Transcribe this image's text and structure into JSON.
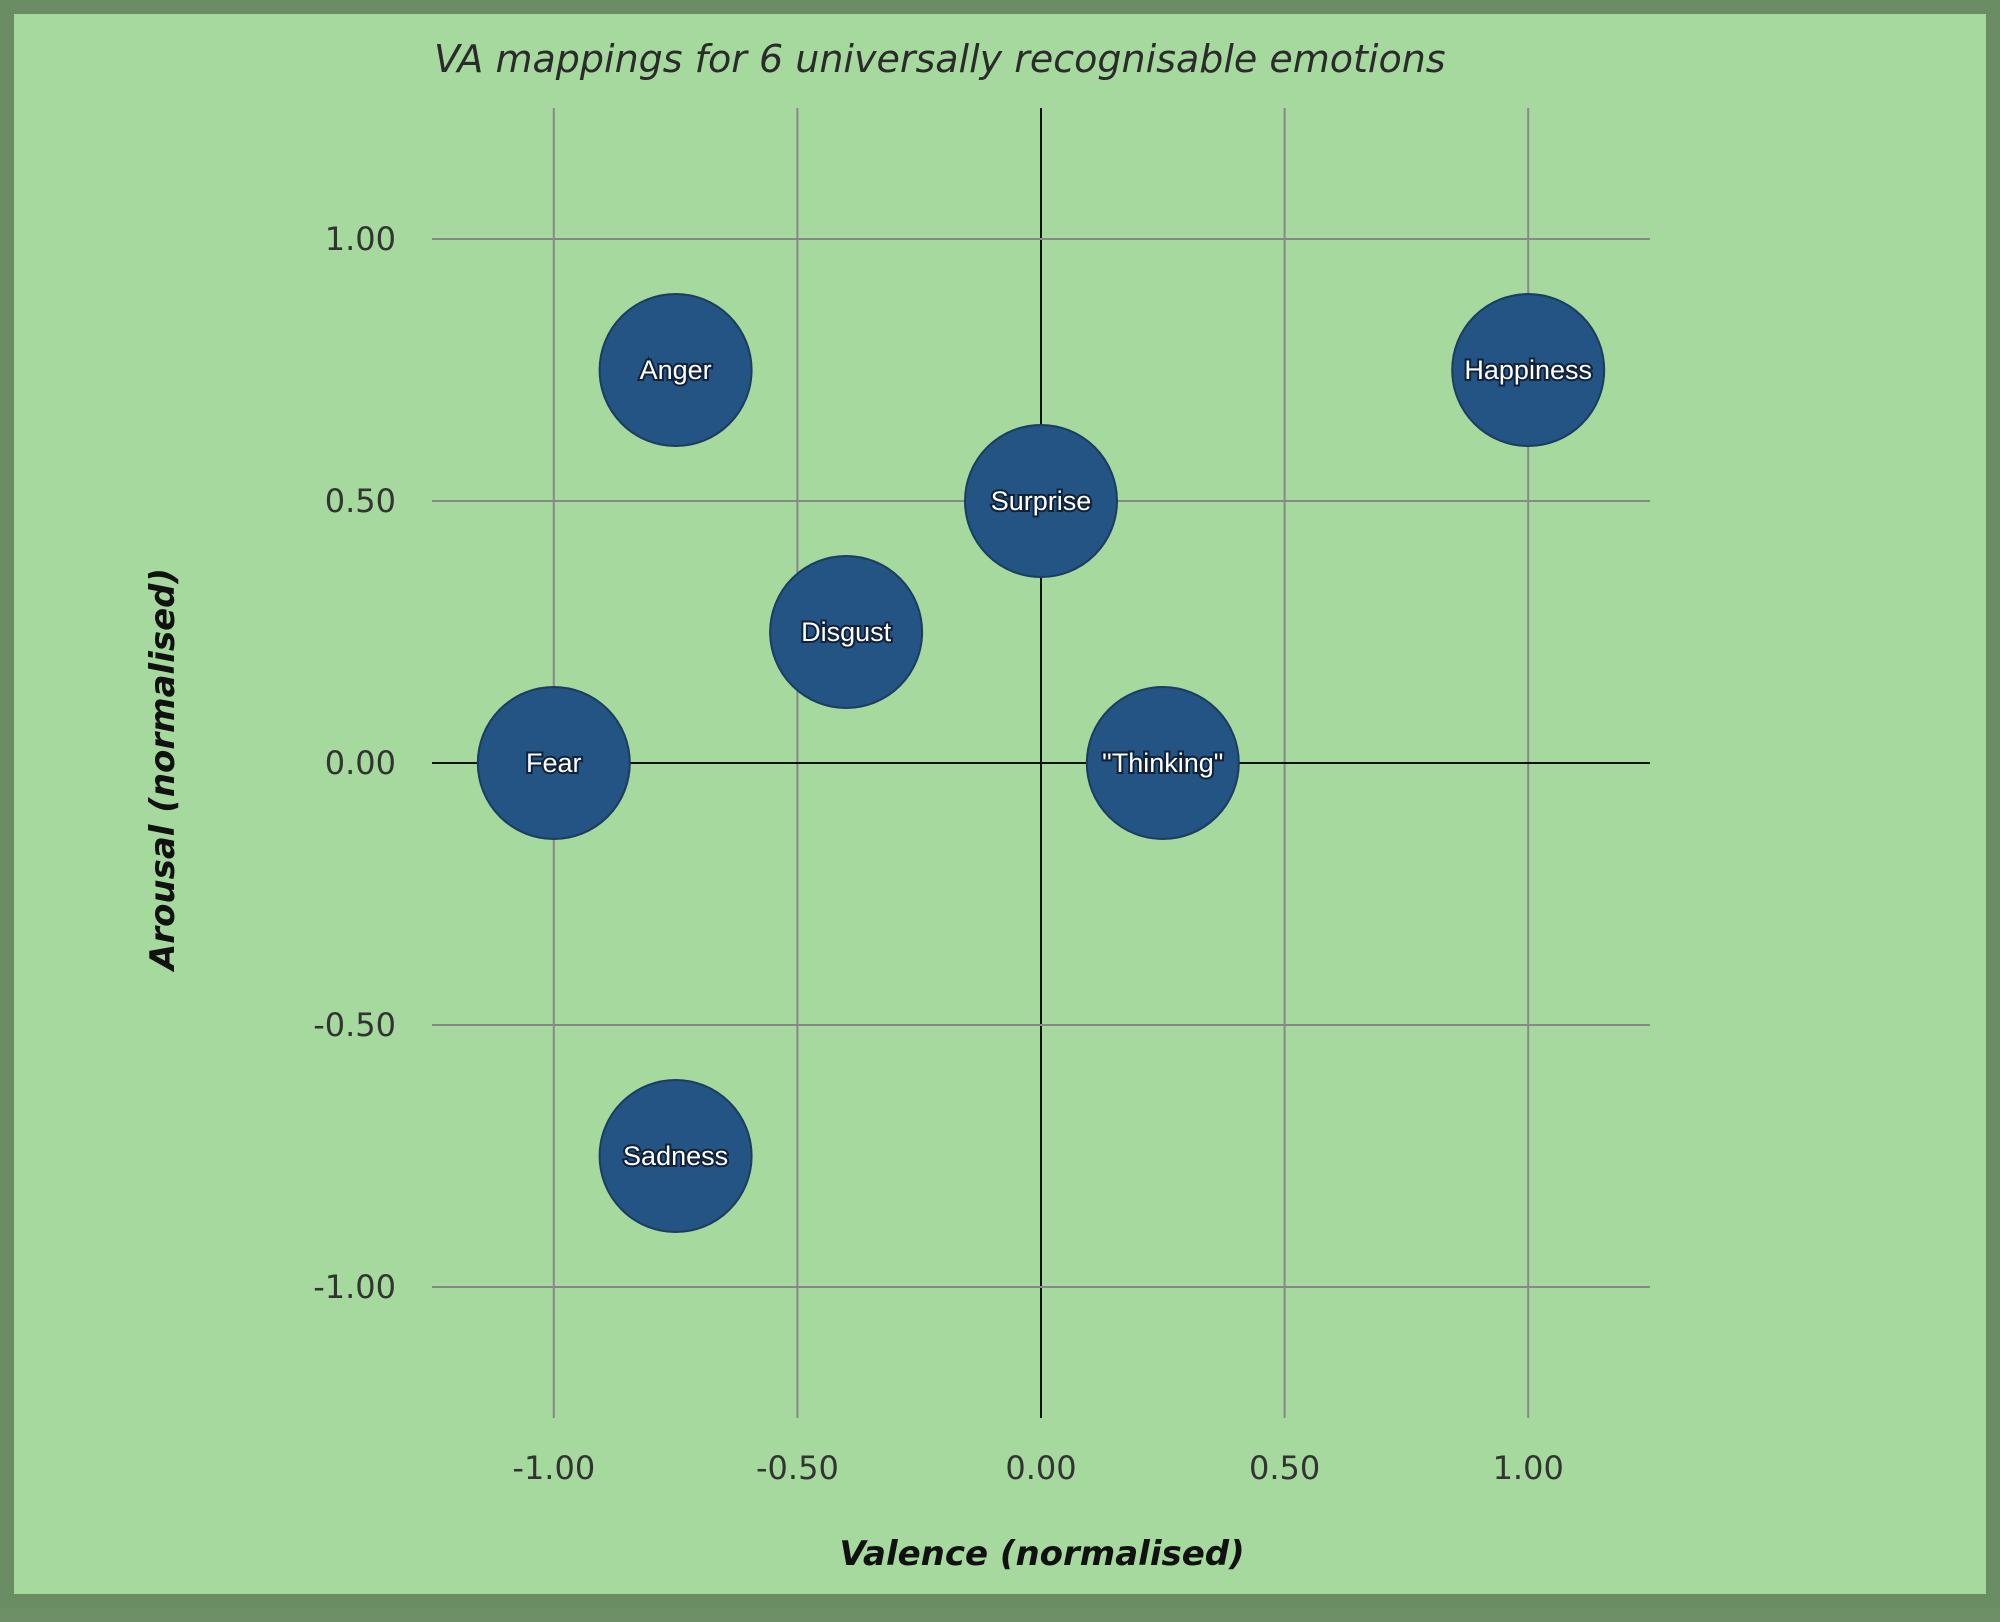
{
  "chart_data": {
    "type": "scatter",
    "title": "VA mappings for 6 universally recognisable emotions",
    "xlabel": "Valence (normalised)",
    "ylabel": "Arousal (normalised)",
    "xlim": [
      -1.25,
      1.25
    ],
    "ylim": [
      -1.25,
      1.25
    ],
    "xticks": [
      -1.0,
      -0.5,
      0.0,
      0.5,
      1.0
    ],
    "yticks": [
      -1.0,
      -0.5,
      0.0,
      0.5,
      1.0
    ],
    "xtick_labels": [
      "-1.00",
      "-0.50",
      "0.00",
      "0.50",
      "1.00"
    ],
    "ytick_labels": [
      "-1.00",
      "-0.50",
      "0.00",
      "0.50",
      "1.00"
    ],
    "grid": true,
    "marker_color": "#235483",
    "points": [
      {
        "label": "Anger",
        "x": -0.75,
        "y": 0.75
      },
      {
        "label": "Happiness",
        "x": 1.0,
        "y": 0.75
      },
      {
        "label": "Surprise",
        "x": 0.0,
        "y": 0.5
      },
      {
        "label": "Disgust",
        "x": -0.4,
        "y": 0.25
      },
      {
        "label": "Fear",
        "x": -1.0,
        "y": 0.0
      },
      {
        "label": "\"Thinking\"",
        "x": 0.25,
        "y": 0.0
      },
      {
        "label": "Sadness",
        "x": -0.75,
        "y": -0.75
      }
    ]
  }
}
